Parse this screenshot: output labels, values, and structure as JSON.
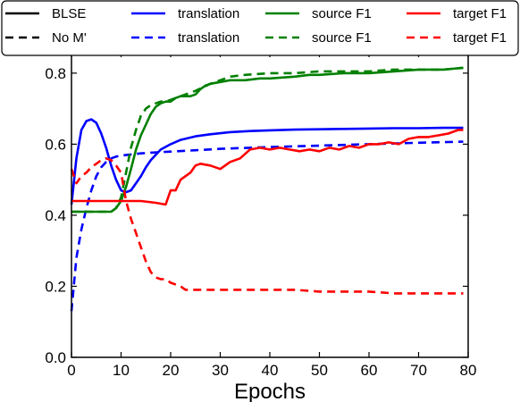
{
  "chart_data": {
    "type": "line",
    "xlabel": "Epochs",
    "ylabel": "",
    "xlim": [
      0,
      80
    ],
    "ylim": [
      0.0,
      0.86
    ],
    "xticks": [
      "0",
      "10",
      "20",
      "30",
      "40",
      "50",
      "60",
      "70",
      "80"
    ],
    "yticks": [
      "0.0",
      "0.2",
      "0.4",
      "0.6",
      "0.8"
    ],
    "grid": false,
    "legend_position": "top",
    "legend": [
      {
        "label": "BLSE",
        "color": "#000000",
        "dash": "solid"
      },
      {
        "label": "No M'",
        "color": "#000000",
        "dash": "dashed"
      },
      {
        "label": "translation",
        "color": "#0000ff",
        "dash": "solid"
      },
      {
        "label": "translation",
        "color": "#0000ff",
        "dash": "dashed"
      },
      {
        "label": "source F1",
        "color": "#008000",
        "dash": "solid"
      },
      {
        "label": "source F1",
        "color": "#008000",
        "dash": "dashed"
      },
      {
        "label": "target F1",
        "color": "#ff0000",
        "dash": "solid"
      },
      {
        "label": "target F1",
        "color": "#ff0000",
        "dash": "dashed"
      }
    ],
    "series": [
      {
        "color": "#0000ff",
        "dash": "solid",
        "x": [
          0,
          1,
          2,
          3,
          4,
          5,
          6,
          7,
          8,
          9,
          10,
          11,
          12,
          13,
          14,
          15,
          16,
          18,
          20,
          22,
          25,
          28,
          32,
          36,
          40,
          45,
          50,
          55,
          60,
          65,
          70,
          75,
          79
        ],
        "y": [
          0.43,
          0.56,
          0.64,
          0.665,
          0.67,
          0.66,
          0.63,
          0.59,
          0.54,
          0.5,
          0.47,
          0.465,
          0.47,
          0.49,
          0.51,
          0.535,
          0.555,
          0.585,
          0.6,
          0.612,
          0.622,
          0.628,
          0.634,
          0.637,
          0.639,
          0.641,
          0.642,
          0.643,
          0.644,
          0.645,
          0.645,
          0.646,
          0.646
        ]
      },
      {
        "color": "#0000ff",
        "dash": "dashed",
        "x": [
          0,
          1,
          2,
          3,
          4,
          5,
          6,
          7,
          8,
          9,
          10,
          12,
          14,
          16,
          20,
          25,
          30,
          40,
          50,
          60,
          70,
          79
        ],
        "y": [
          0.13,
          0.28,
          0.36,
          0.42,
          0.47,
          0.51,
          0.535,
          0.55,
          0.56,
          0.565,
          0.568,
          0.571,
          0.574,
          0.576,
          0.579,
          0.583,
          0.587,
          0.592,
          0.596,
          0.6,
          0.604,
          0.607
        ]
      },
      {
        "color": "#008000",
        "dash": "solid",
        "x": [
          0,
          5,
          8,
          9,
          10,
          11,
          12,
          13,
          14,
          15,
          16,
          17,
          18,
          19,
          20,
          21,
          22,
          24,
          25,
          26,
          27,
          28,
          30,
          32,
          35,
          38,
          40,
          45,
          48,
          50,
          55,
          60,
          65,
          70,
          75,
          79
        ],
        "y": [
          0.41,
          0.41,
          0.41,
          0.42,
          0.44,
          0.48,
          0.53,
          0.585,
          0.625,
          0.655,
          0.685,
          0.705,
          0.715,
          0.72,
          0.72,
          0.73,
          0.735,
          0.735,
          0.74,
          0.755,
          0.765,
          0.77,
          0.775,
          0.78,
          0.78,
          0.785,
          0.785,
          0.79,
          0.795,
          0.795,
          0.8,
          0.8,
          0.805,
          0.81,
          0.81,
          0.815
        ]
      },
      {
        "color": "#008000",
        "dash": "dashed",
        "x": [
          0,
          5,
          8,
          9,
          10,
          11,
          12,
          13,
          14,
          15,
          16,
          17,
          18,
          19,
          20,
          22,
          25,
          28,
          30,
          32,
          35,
          40,
          45,
          50,
          55,
          60,
          65,
          70,
          75,
          79
        ],
        "y": [
          0.41,
          0.41,
          0.41,
          0.42,
          0.45,
          0.52,
          0.59,
          0.64,
          0.68,
          0.7,
          0.71,
          0.715,
          0.72,
          0.72,
          0.725,
          0.735,
          0.75,
          0.77,
          0.78,
          0.79,
          0.795,
          0.8,
          0.8,
          0.805,
          0.805,
          0.805,
          0.81,
          0.81,
          0.81,
          0.815
        ]
      },
      {
        "color": "#ff0000",
        "dash": "solid",
        "x": [
          0,
          5,
          10,
          14,
          17,
          19,
          20,
          21,
          22,
          23,
          24,
          25,
          26,
          28,
          30,
          32,
          34,
          36,
          38,
          40,
          42,
          44,
          46,
          48,
          50,
          52,
          54,
          56,
          58,
          60,
          62,
          64,
          66,
          68,
          70,
          72,
          74,
          76,
          78,
          79
        ],
        "y": [
          0.44,
          0.44,
          0.44,
          0.44,
          0.435,
          0.43,
          0.47,
          0.47,
          0.5,
          0.51,
          0.52,
          0.54,
          0.545,
          0.54,
          0.53,
          0.55,
          0.56,
          0.585,
          0.59,
          0.585,
          0.59,
          0.585,
          0.58,
          0.585,
          0.58,
          0.59,
          0.585,
          0.595,
          0.59,
          0.6,
          0.6,
          0.605,
          0.6,
          0.615,
          0.62,
          0.62,
          0.625,
          0.63,
          0.64,
          0.64
        ]
      },
      {
        "color": "#ff0000",
        "dash": "dashed",
        "x": [
          0,
          1,
          2,
          3,
          4,
          5,
          6,
          7,
          8,
          9,
          10,
          11,
          12,
          13,
          14,
          15,
          16,
          17,
          18,
          19,
          20,
          21,
          22,
          23,
          25,
          30,
          35,
          40,
          45,
          50,
          55,
          60,
          65,
          70,
          75,
          79
        ],
        "y": [
          0.53,
          0.49,
          0.51,
          0.52,
          0.535,
          0.545,
          0.555,
          0.56,
          0.555,
          0.54,
          0.52,
          0.44,
          0.39,
          0.35,
          0.31,
          0.27,
          0.24,
          0.225,
          0.22,
          0.22,
          0.21,
          0.205,
          0.2,
          0.19,
          0.19,
          0.19,
          0.19,
          0.19,
          0.19,
          0.185,
          0.185,
          0.185,
          0.18,
          0.18,
          0.18,
          0.18
        ]
      }
    ]
  }
}
